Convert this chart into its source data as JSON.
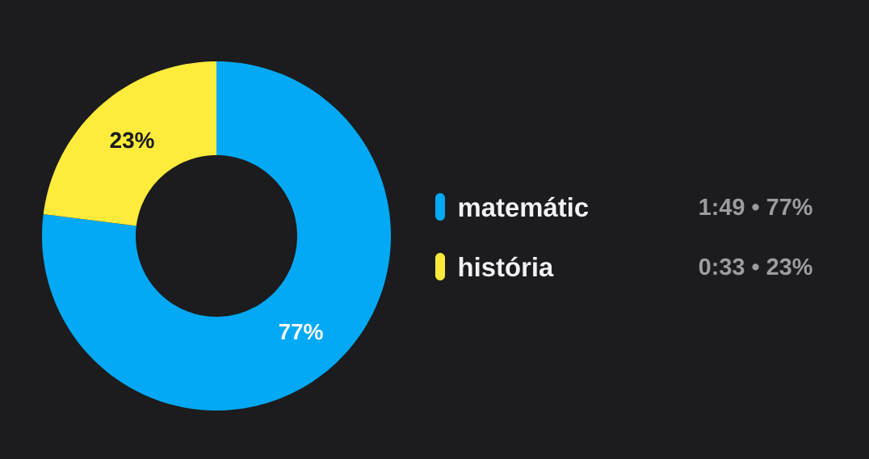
{
  "chart_data": {
    "type": "donut",
    "categories": [
      "matemátic",
      "história"
    ],
    "values": [
      77,
      23
    ],
    "colors": [
      "#03a9f4",
      "#ffeb3b"
    ],
    "value_labels": [
      "77%",
      "23%"
    ],
    "legend": "right",
    "annotations": [
      "1:49 • 77%",
      "0:33 • 23%"
    ]
  }
}
